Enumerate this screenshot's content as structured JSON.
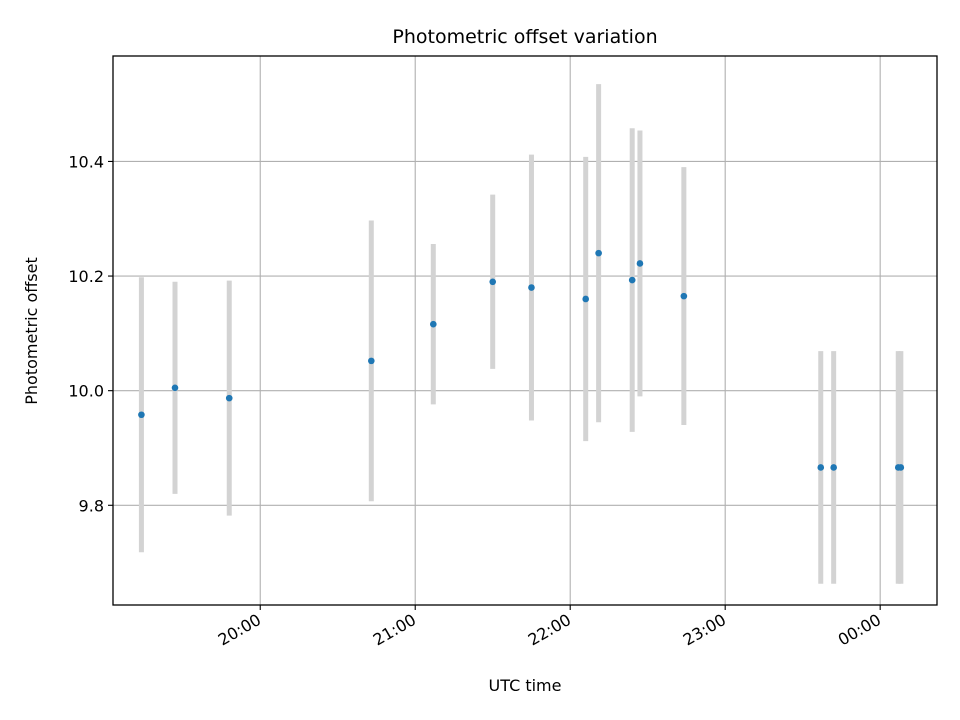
{
  "chart_data": {
    "type": "scatter",
    "title": "Photometric offset variation",
    "xlabel": "UTC time",
    "ylabel": "Photometric offset",
    "grid": true,
    "x_ticks": [
      "20:00",
      "21:00",
      "22:00",
      "23:00",
      "00:00"
    ],
    "y_ticks": [
      "9.8",
      "10.0",
      "10.2",
      "10.4"
    ],
    "xlim": [
      "19:03",
      "00:22"
    ],
    "ylim": [
      9.626,
      10.584
    ],
    "colors": {
      "point": "#1f77b4",
      "errorbar": "#d3d3d3",
      "grid": "#b0b0b0"
    },
    "points": [
      {
        "x": "19:14",
        "y": 9.958,
        "yerr": 0.24
      },
      {
        "x": "19:27",
        "y": 10.005,
        "yerr": 0.185
      },
      {
        "x": "19:48",
        "y": 9.987,
        "yerr": 0.205
      },
      {
        "x": "20:43",
        "y": 10.052,
        "yerr": 0.245
      },
      {
        "x": "21:07",
        "y": 10.116,
        "yerr": 0.14
      },
      {
        "x": "21:30",
        "y": 10.19,
        "yerr": 0.152
      },
      {
        "x": "21:45",
        "y": 10.18,
        "yerr": 0.232
      },
      {
        "x": "22:06",
        "y": 10.16,
        "yerr": 0.248
      },
      {
        "x": "22:11",
        "y": 10.24,
        "yerr": 0.295
      },
      {
        "x": "22:24",
        "y": 10.193,
        "yerr": 0.265
      },
      {
        "x": "22:27",
        "y": 10.222,
        "yerr": 0.232
      },
      {
        "x": "22:44",
        "y": 10.165,
        "yerr": 0.225
      },
      {
        "x": "23:37",
        "y": 9.866,
        "yerr": 0.203
      },
      {
        "x": "23:42",
        "y": 9.866,
        "yerr": 0.203
      },
      {
        "x": "00:07",
        "y": 9.866,
        "yerr": 0.203
      },
      {
        "x": "00:08",
        "y": 9.866,
        "yerr": 0.203
      }
    ]
  }
}
